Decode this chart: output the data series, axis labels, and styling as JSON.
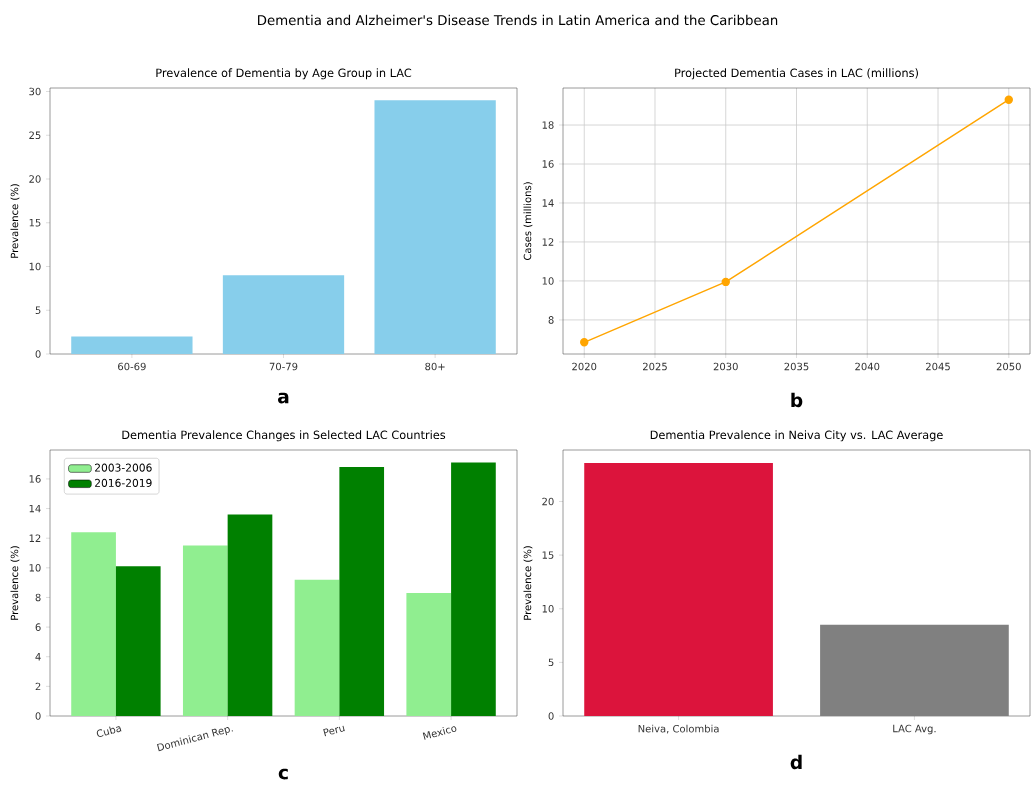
{
  "chart_data": [
    {
      "type": "bar",
      "title": "Prevalence of Dementia by Age Group in LAC",
      "xlabel": "a",
      "ylabel": "Prevalence (%)",
      "annotations": [
        "Dementia and Alzheimer's Disease Trends in Latin America and the Caribbean"
      ],
      "categories": [
        "60-69",
        "70-79",
        "80+"
      ],
      "values": [
        2,
        9,
        29
      ],
      "color": "#87ceeb",
      "ylim": [
        0,
        30.4
      ],
      "yticks": [
        0,
        5,
        10,
        15,
        20,
        25,
        30
      ]
    },
    {
      "type": "line",
      "title": "Projected Dementia Cases in LAC (millions)",
      "xlabel": "b",
      "ylabel": "Cases (millions)",
      "x": [
        2020,
        2030,
        2050
      ],
      "values": [
        6.85,
        9.95,
        19.3
      ],
      "color": "#ffa500",
      "marker": "circle",
      "grid": true,
      "xlim": [
        2018.5,
        2051.5
      ],
      "xticks": [
        2020,
        2025,
        2030,
        2035,
        2040,
        2045,
        2050
      ],
      "ylim": [
        6.25,
        19.9
      ],
      "yticks": [
        8,
        10,
        12,
        14,
        16,
        18
      ]
    },
    {
      "type": "bar",
      "title": "Dementia Prevalence Changes in Selected LAC Countries",
      "xlabel": "c",
      "ylabel": "Prevalence (%)",
      "categories": [
        "Cuba",
        "Dominican Rep.",
        "Peru",
        "Mexico"
      ],
      "legend": "top left",
      "series": [
        {
          "name": "2003-2006",
          "color": "#90ee90",
          "values": [
            12.4,
            11.5,
            9.2,
            8.3
          ]
        },
        {
          "name": "2016-2019",
          "color": "#008000",
          "values": [
            10.1,
            13.6,
            16.8,
            17.1
          ]
        }
      ],
      "ylim": [
        0,
        17.95
      ],
      "yticks": [
        0,
        2,
        4,
        6,
        8,
        10,
        12,
        14,
        16
      ]
    },
    {
      "type": "bar",
      "title": "Dementia Prevalence in Neiva City vs. LAC Average",
      "xlabel": "d",
      "ylabel": "Prevalence (%)",
      "categories": [
        "Neiva, Colombia",
        "LAC Avg."
      ],
      "values": [
        23.6,
        8.5
      ],
      "colors": [
        "#dc143c",
        "#808080"
      ],
      "ylim": [
        0,
        24.8
      ],
      "yticks": [
        0,
        5,
        10,
        15,
        20
      ]
    }
  ]
}
